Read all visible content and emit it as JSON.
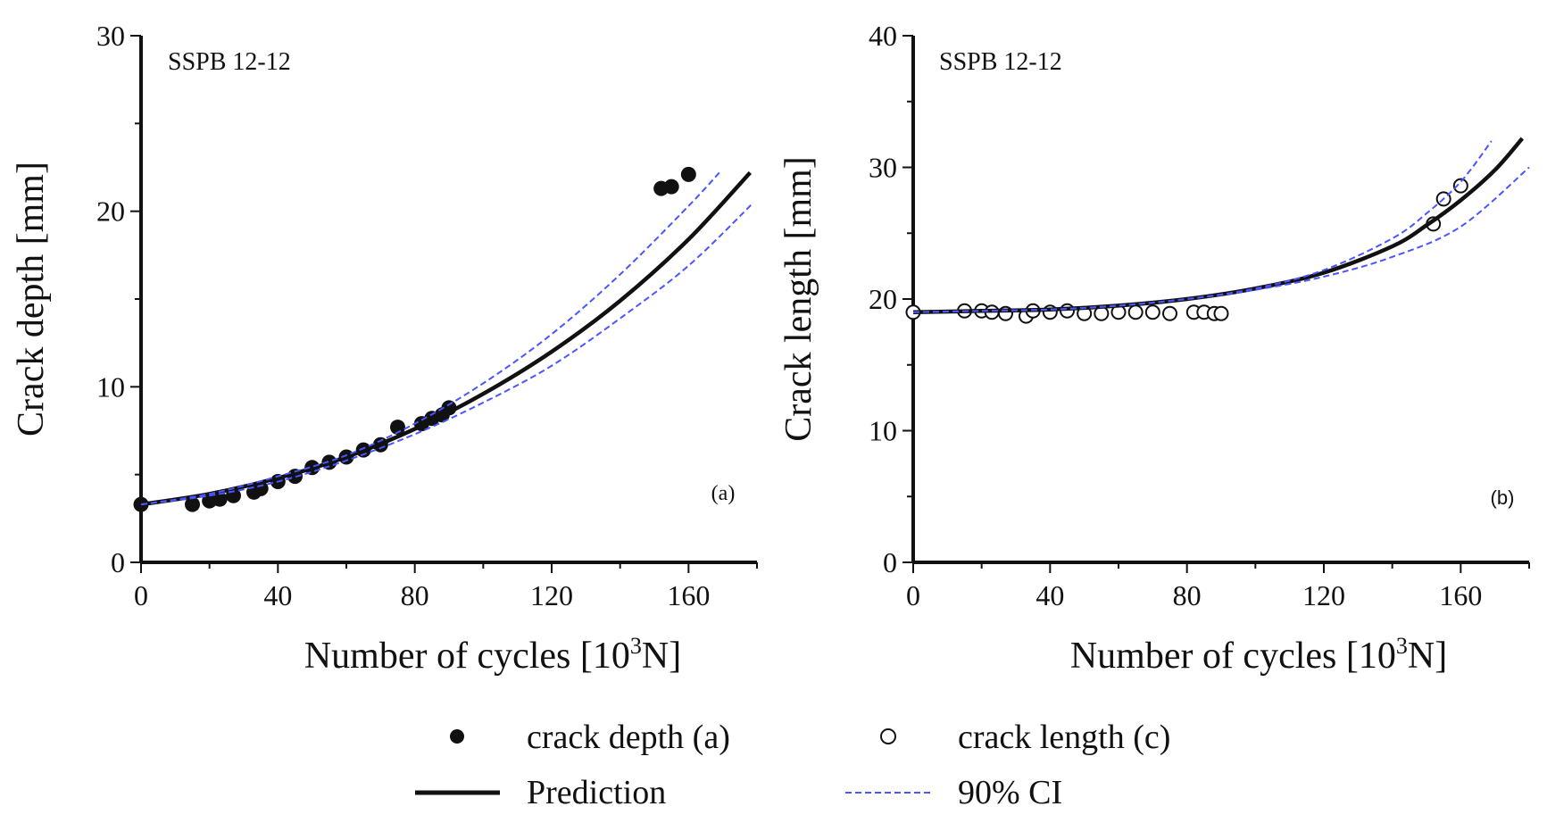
{
  "chart_data": [
    {
      "type": "scatter",
      "panel_label": "(a)",
      "annotation": "SSPB 12-12",
      "xlabel": "Number of cycles [10",
      "xlabel_sup": "3",
      "xlabel_suffix": "N]",
      "ylabel": "Crack depth [mm]",
      "xlim": [
        0,
        180
      ],
      "ylim": [
        0,
        30
      ],
      "xticks": [
        0,
        40,
        80,
        120,
        160
      ],
      "yticks": [
        0,
        10,
        20,
        30
      ],
      "grid": false,
      "series": [
        {
          "name": "crack depth (a)",
          "marker": "filled-circle",
          "x": [
            0,
            15,
            20,
            23,
            27,
            33,
            35,
            40,
            45,
            50,
            55,
            60,
            65,
            70,
            75,
            82,
            85,
            88,
            90,
            152,
            155,
            160
          ],
          "y": [
            3.3,
            3.3,
            3.5,
            3.6,
            3.8,
            4.0,
            4.2,
            4.6,
            4.9,
            5.4,
            5.7,
            6.0,
            6.4,
            6.7,
            7.7,
            7.9,
            8.2,
            8.4,
            8.8,
            21.3,
            21.4,
            22.1
          ]
        },
        {
          "name": "Prediction",
          "style": "solid",
          "x": [
            0,
            20,
            40,
            60,
            80,
            100,
            120,
            140,
            160,
            178
          ],
          "y": [
            3.3,
            3.9,
            4.8,
            6.0,
            7.6,
            9.6,
            12.0,
            14.9,
            18.4,
            22.2
          ]
        },
        {
          "name": "90% CI",
          "style": "dashed",
          "x": [
            0,
            20,
            40,
            60,
            80,
            100,
            120,
            140,
            160,
            169
          ],
          "y": [
            3.3,
            3.9,
            4.9,
            6.1,
            7.9,
            10.2,
            13.0,
            16.4,
            20.3,
            22.2
          ]
        },
        {
          "name": "90% CI",
          "style": "dashed",
          "x": [
            0,
            20,
            40,
            60,
            80,
            100,
            120,
            140,
            160,
            179
          ],
          "y": [
            3.3,
            3.8,
            4.6,
            5.8,
            7.3,
            9.1,
            11.2,
            13.9,
            16.9,
            20.5
          ]
        }
      ]
    },
    {
      "type": "scatter",
      "panel_label": "(b)",
      "annotation": "SSPB 12-12",
      "xlabel": "Number of cycles [10",
      "xlabel_sup": "3",
      "xlabel_suffix": "N]",
      "ylabel": "Crack length [mm]",
      "xlim": [
        0,
        180
      ],
      "ylim": [
        0,
        40
      ],
      "xticks": [
        0,
        40,
        80,
        120,
        160
      ],
      "yticks": [
        0,
        10,
        20,
        30,
        40
      ],
      "grid": false,
      "series": [
        {
          "name": "crack length (c)",
          "marker": "open-circle",
          "x": [
            0,
            15,
            20,
            23,
            27,
            33,
            35,
            40,
            45,
            50,
            55,
            60,
            65,
            70,
            75,
            82,
            85,
            88,
            90,
            152,
            155,
            160
          ],
          "y": [
            19.0,
            19.1,
            19.1,
            19.0,
            18.9,
            18.7,
            19.1,
            19.0,
            19.1,
            18.9,
            18.9,
            19.0,
            19.0,
            19.0,
            18.9,
            19.0,
            19.0,
            18.9,
            18.9,
            25.7,
            27.6,
            28.6
          ]
        },
        {
          "name": "Prediction",
          "style": "solid",
          "x": [
            0,
            20,
            40,
            60,
            80,
            100,
            120,
            140,
            150,
            160,
            170,
            178
          ],
          "y": [
            19.0,
            19.1,
            19.2,
            19.5,
            20.0,
            20.8,
            22.0,
            24.0,
            25.6,
            27.5,
            29.8,
            32.2
          ]
        },
        {
          "name": "90% CI",
          "style": "dashed",
          "x": [
            0,
            20,
            40,
            60,
            80,
            100,
            120,
            140,
            150,
            160,
            169
          ],
          "y": [
            19.0,
            19.1,
            19.2,
            19.5,
            20.0,
            20.8,
            22.2,
            24.6,
            26.5,
            28.9,
            32.0
          ]
        },
        {
          "name": "90% CI",
          "style": "dashed",
          "x": [
            0,
            20,
            40,
            60,
            80,
            100,
            120,
            140,
            160,
            180
          ],
          "y": [
            19.0,
            19.1,
            19.2,
            19.5,
            20.0,
            20.7,
            21.7,
            23.2,
            25.5,
            30.0
          ]
        }
      ]
    }
  ],
  "legend": {
    "placement": "bottom",
    "items": [
      {
        "label": "crack depth (a)",
        "symbol": "filled-circle"
      },
      {
        "label": "crack length (c)",
        "symbol": "open-circle"
      },
      {
        "label": "Prediction",
        "symbol": "solid-line"
      },
      {
        "label": "90% CI",
        "symbol": "dashed-line"
      }
    ]
  },
  "colors": {
    "data": "#111111",
    "prediction": "#111111",
    "ci": "#4a55ff"
  }
}
